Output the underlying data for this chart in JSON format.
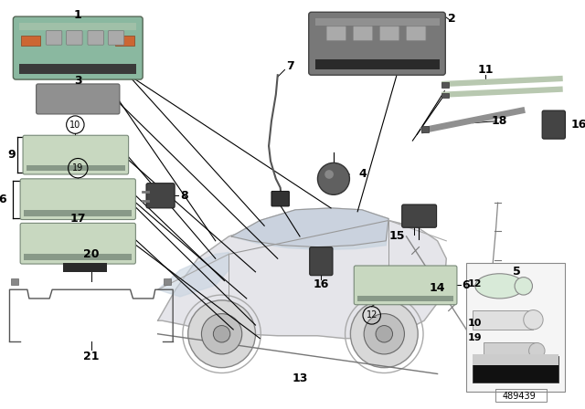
{
  "bg_color": "#ffffff",
  "fig_width": 6.4,
  "fig_height": 4.48,
  "dpi": 100,
  "part_number": "489439",
  "car": {
    "body_color": "#e8e8ea",
    "body_edge": "#aaaaaa",
    "glass_color": "#d0d8e0",
    "wheel_color": "#cccccc"
  },
  "parts": {
    "part1_color": "#8ab8a0",
    "part1_dark": "#4a5a50",
    "part2_color": "#787878",
    "part2_dark": "#3a3a3a",
    "part3_color": "#909090",
    "light_color": "#c8d8c0",
    "light_edge": "#888888",
    "connector_color": "#555555",
    "cable_color": "#666666",
    "wire_color": "#888888",
    "fiber_color": "#b8c8b0"
  },
  "label_fs": 8,
  "small_fs": 7
}
